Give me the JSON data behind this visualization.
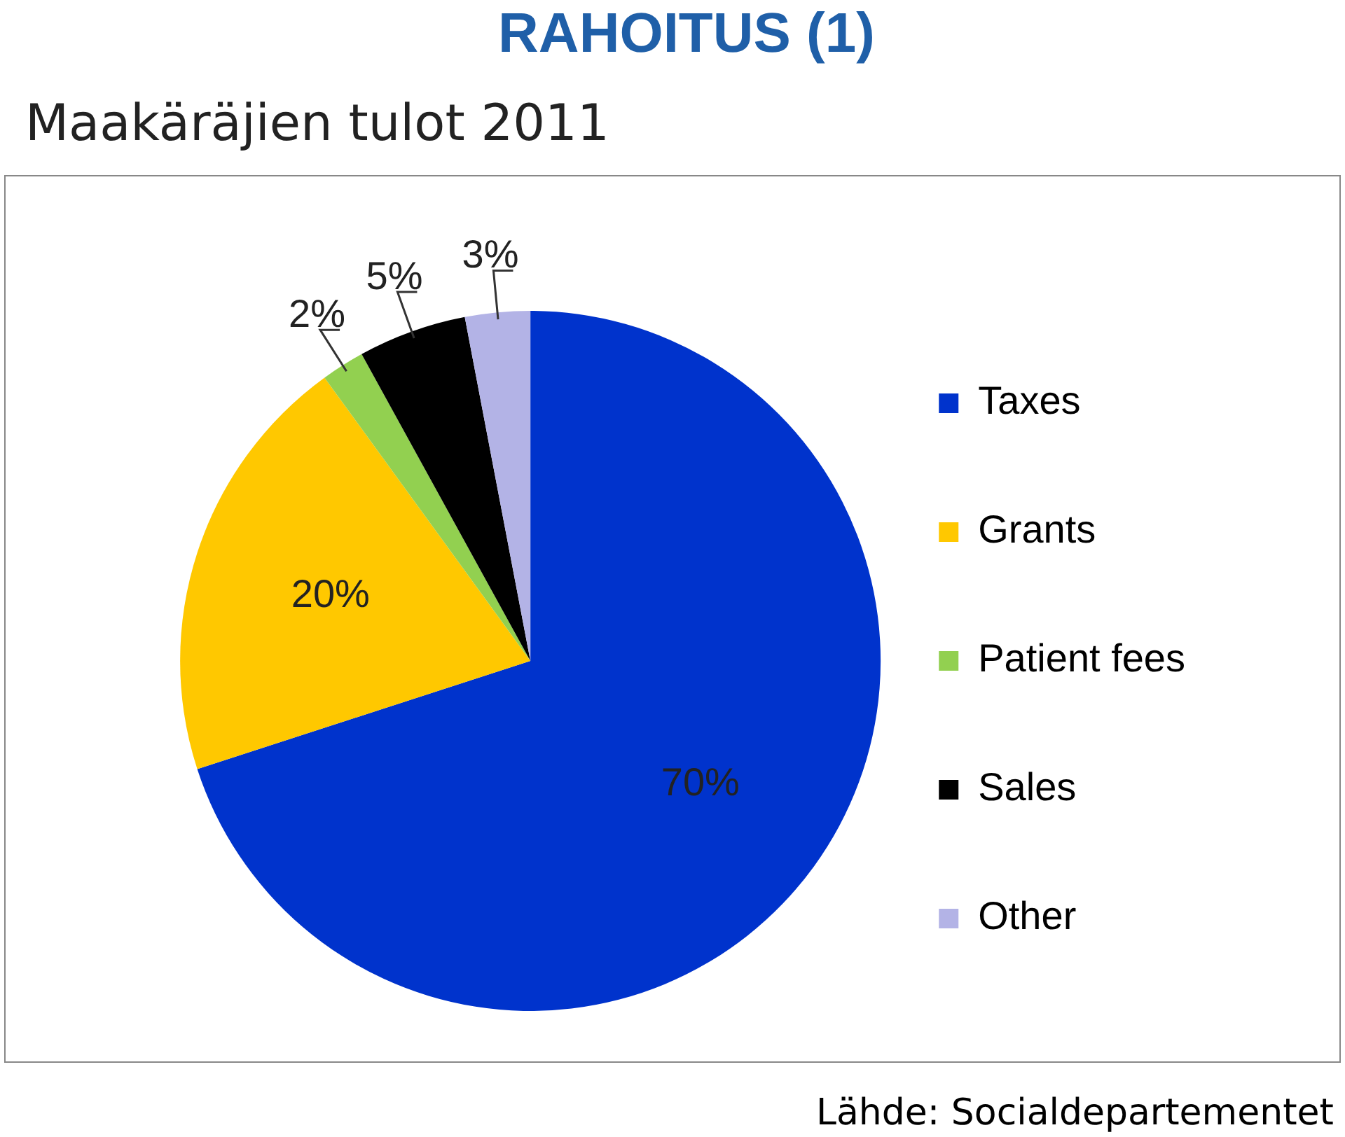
{
  "chart_data": {
    "type": "pie",
    "title": "RAHOITUS (1)",
    "subtitle": "Maakäräjien tulot 2011",
    "categories": [
      "Taxes",
      "Grants",
      "Patient fees",
      "Sales",
      "Other"
    ],
    "values": [
      70,
      20,
      2,
      5,
      3
    ],
    "colors": [
      "#0033cc",
      "#ffc800",
      "#92d050",
      "#000000",
      "#b3b3e6"
    ],
    "value_labels": [
      "70%",
      "20%",
      "2%",
      "5%",
      "3%"
    ],
    "legend": "right",
    "annotations": [
      "Lähde: Socialdepartementet"
    ]
  }
}
